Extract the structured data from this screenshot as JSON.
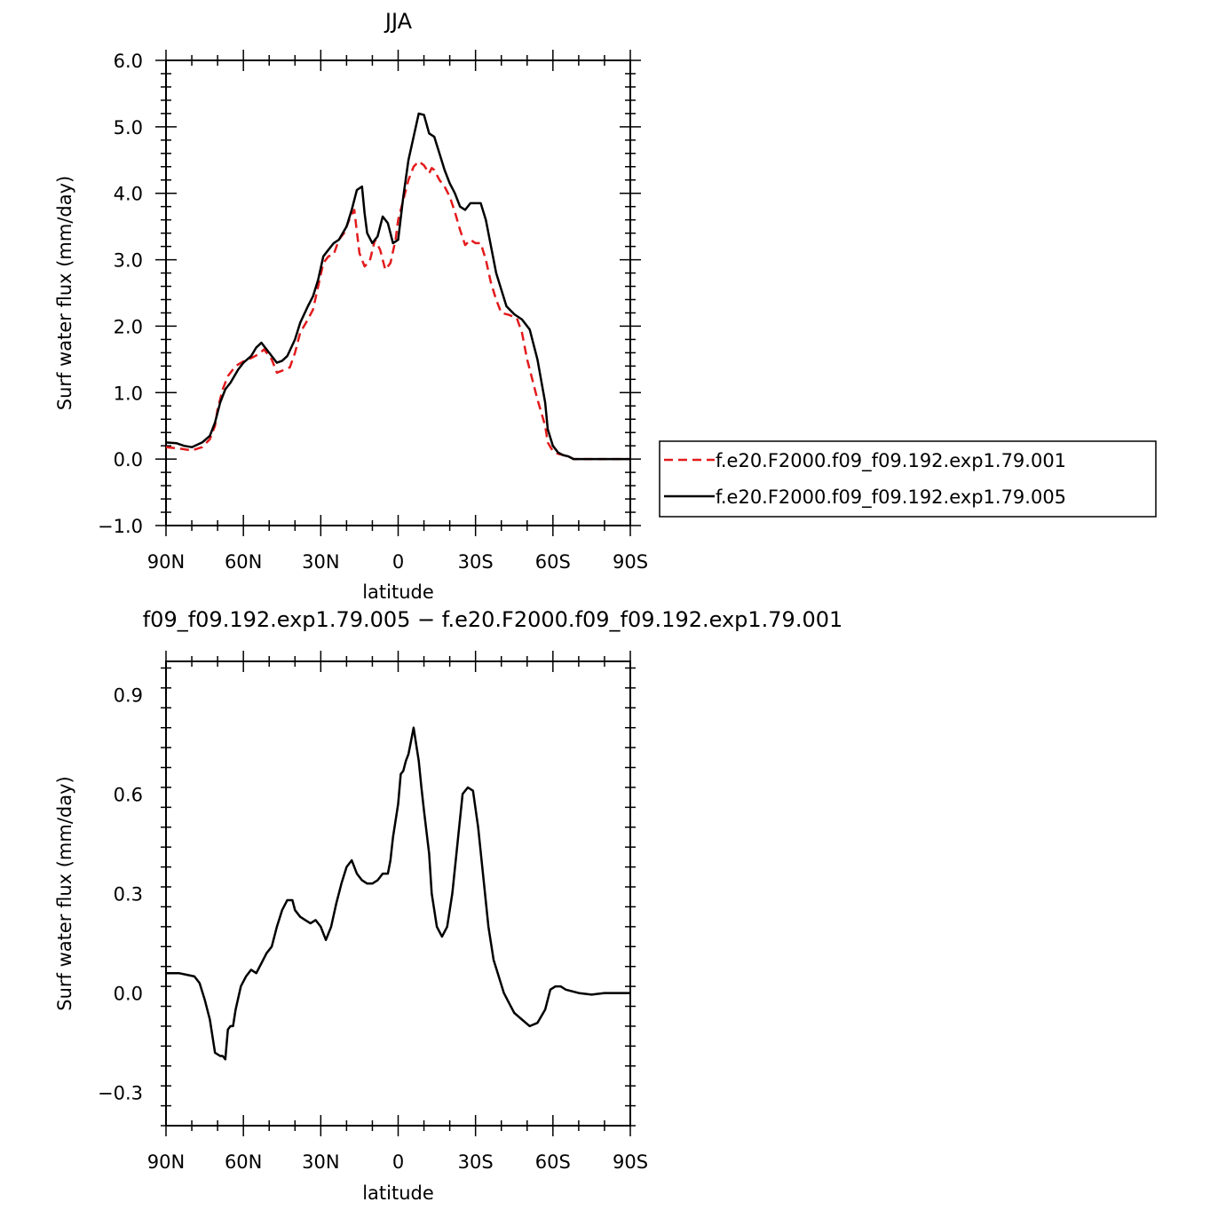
{
  "chart_data": [
    {
      "type": "line",
      "title": "JJA",
      "xlabel": "latitude",
      "ylabel": "Surf water flux (mm/day)",
      "xlim": [
        90,
        -90
      ],
      "ylim": [
        -1.0,
        6.0
      ],
      "x_ticks": [
        90,
        60,
        30,
        0,
        -30,
        -60,
        -90
      ],
      "x_tick_labels": [
        "90N",
        "60N",
        "30N",
        "0",
        "30S",
        "60S",
        "90S"
      ],
      "y_ticks": [
        -1.0,
        0.0,
        1.0,
        2.0,
        3.0,
        4.0,
        5.0,
        6.0
      ],
      "y_tick_labels": [
        "−1.0",
        "0.0",
        "1.0",
        "2.0",
        "3.0",
        "4.0",
        "5.0",
        "6.0"
      ],
      "legend_position": "right",
      "series": [
        {
          "name": "f.e20.F2000.f09_f09.192.exp1.79.001",
          "color": "#e31a1c",
          "style": "dashed",
          "x": [
            90,
            85,
            80,
            76,
            73,
            71,
            70,
            68,
            66,
            63,
            60,
            57,
            54,
            52,
            49,
            47,
            45,
            42,
            40,
            38,
            35,
            33,
            31,
            29,
            27,
            25,
            23,
            21,
            19,
            17,
            15,
            13,
            11,
            9,
            7,
            5,
            3,
            1,
            0,
            -2,
            -4,
            -6,
            -8,
            -10,
            -12,
            -13,
            -14,
            -16,
            -18,
            -20,
            -22,
            -24,
            -26,
            -28,
            -30,
            -32,
            -34,
            -36,
            -38,
            -40,
            -43,
            -46,
            -48,
            -50,
            -54,
            -57,
            -58,
            -60,
            -62,
            -64,
            -66,
            -68,
            -70,
            -72,
            -75,
            -78,
            -80,
            -83,
            -86,
            -90
          ],
          "y": [
            0.18,
            0.16,
            0.13,
            0.18,
            0.3,
            0.5,
            0.75,
            1.05,
            1.25,
            1.4,
            1.47,
            1.52,
            1.58,
            1.65,
            1.5,
            1.3,
            1.33,
            1.38,
            1.6,
            1.9,
            2.1,
            2.25,
            2.6,
            2.95,
            3.05,
            3.08,
            3.3,
            3.4,
            3.6,
            3.75,
            3.1,
            2.9,
            2.98,
            3.3,
            3.15,
            2.85,
            2.95,
            3.3,
            3.6,
            3.9,
            4.2,
            4.4,
            4.48,
            4.42,
            4.3,
            4.38,
            4.35,
            4.2,
            4.1,
            3.95,
            3.72,
            3.45,
            3.22,
            3.3,
            3.25,
            3.25,
            3.0,
            2.65,
            2.4,
            2.2,
            2.17,
            2.12,
            1.9,
            1.5,
            0.9,
            0.5,
            0.25,
            0.12,
            0.08,
            0.06,
            0.04,
            0.0,
            0.0,
            0.0,
            0.0,
            0.0,
            0.0,
            0.0,
            0.0,
            0.0
          ]
        },
        {
          "name": "f.e20.F2000.f09_f09.192.exp1.79.005",
          "color": "#000000",
          "style": "solid",
          "x": [
            90,
            86,
            83,
            80,
            76,
            73,
            71,
            69,
            67,
            65,
            62,
            60,
            57,
            55,
            53,
            51,
            49,
            47,
            45,
            43,
            40,
            38,
            35,
            33,
            31,
            29,
            27,
            25,
            23,
            20,
            18,
            16,
            14,
            13,
            12,
            10,
            8,
            6,
            4,
            2,
            0,
            -2,
            -4,
            -6,
            -8,
            -10,
            -12,
            -14,
            -16,
            -18,
            -20,
            -22,
            -24,
            -26,
            -28,
            -30,
            -32,
            -34,
            -36,
            -38,
            -40,
            -42,
            -45,
            -48,
            -51,
            -54,
            -57,
            -58,
            -60,
            -62,
            -64,
            -66,
            -68,
            -70,
            -72,
            -75,
            -78,
            -80,
            -83,
            -86,
            -90
          ],
          "y": [
            0.25,
            0.24,
            0.2,
            0.18,
            0.25,
            0.35,
            0.55,
            0.85,
            1.05,
            1.15,
            1.35,
            1.45,
            1.55,
            1.68,
            1.75,
            1.65,
            1.55,
            1.45,
            1.48,
            1.55,
            1.8,
            2.05,
            2.3,
            2.45,
            2.7,
            3.05,
            3.15,
            3.25,
            3.3,
            3.5,
            3.75,
            4.05,
            4.1,
            3.7,
            3.4,
            3.25,
            3.35,
            3.65,
            3.55,
            3.25,
            3.3,
            3.95,
            4.5,
            4.85,
            5.2,
            5.18,
            4.9,
            4.85,
            4.6,
            4.35,
            4.15,
            4.0,
            3.8,
            3.75,
            3.85,
            3.85,
            3.85,
            3.6,
            3.2,
            2.8,
            2.55,
            2.3,
            2.18,
            2.1,
            1.95,
            1.5,
            0.85,
            0.45,
            0.2,
            0.1,
            0.06,
            0.04,
            0.0,
            0.0,
            0.0,
            0.0,
            0.0,
            0.0,
            0.0,
            0.0,
            0.0
          ]
        }
      ]
    },
    {
      "type": "line",
      "title": "f09_f09.192.exp1.79.005 − f.e20.F2000.f09_f09.192.exp1.79.001",
      "xlabel": "latitude",
      "ylabel": "Surf water flux (mm/day)",
      "xlim": [
        90,
        -90
      ],
      "ylim": [
        -0.4,
        1.0
      ],
      "x_ticks": [
        90,
        60,
        30,
        0,
        -30,
        -60,
        -90
      ],
      "x_tick_labels": [
        "90N",
        "60N",
        "30N",
        "0",
        "30S",
        "60S",
        "90S"
      ],
      "y_ticks": [
        -0.3,
        0.0,
        0.3,
        0.6,
        0.9
      ],
      "y_tick_labels": [
        "−0.3",
        "0.0",
        "0.3",
        "0.6",
        "0.9"
      ],
      "series": [
        {
          "color": "#000000",
          "style": "solid",
          "x": [
            90,
            88,
            85,
            82,
            79,
            77,
            75,
            73,
            71,
            69,
            68,
            67,
            66,
            65,
            64,
            63,
            61,
            59,
            57,
            55,
            53,
            51,
            49,
            47,
            45,
            43,
            41,
            40,
            38,
            36,
            34,
            32,
            30,
            28,
            26,
            24,
            22,
            20,
            18,
            16,
            14,
            12,
            10,
            8,
            6,
            4,
            3,
            2,
            0,
            -1,
            -2,
            -3,
            -4,
            -5,
            -6,
            -7,
            -8,
            -9,
            -10,
            -12,
            -13,
            -15,
            -17,
            -19,
            -21,
            -23,
            -25,
            -27,
            -29,
            -31,
            -33,
            -35,
            -37,
            -39,
            -41,
            -43,
            -45,
            -48,
            -51,
            -54,
            -57,
            -59,
            -61,
            -63,
            -65,
            -70,
            -75,
            -80,
            -85,
            -90
          ],
          "y": [
            0.06,
            0.06,
            0.06,
            0.055,
            0.05,
            0.03,
            -0.02,
            -0.08,
            -0.18,
            -0.19,
            -0.19,
            -0.2,
            -0.11,
            -0.1,
            -0.1,
            -0.05,
            0.02,
            0.05,
            0.07,
            0.06,
            0.09,
            0.12,
            0.14,
            0.2,
            0.25,
            0.28,
            0.28,
            0.25,
            0.23,
            0.22,
            0.21,
            0.22,
            0.2,
            0.16,
            0.2,
            0.27,
            0.33,
            0.38,
            0.4,
            0.36,
            0.34,
            0.33,
            0.33,
            0.34,
            0.36,
            0.36,
            0.4,
            0.47,
            0.57,
            0.66,
            0.67,
            0.7,
            0.72,
            0.76,
            0.8,
            0.75,
            0.7,
            0.62,
            0.55,
            0.42,
            0.3,
            0.2,
            0.17,
            0.2,
            0.3,
            0.45,
            0.6,
            0.62,
            0.61,
            0.5,
            0.35,
            0.2,
            0.1,
            0.05,
            0.0,
            -0.03,
            -0.06,
            -0.08,
            -0.1,
            -0.09,
            -0.05,
            0.01,
            0.02,
            0.02,
            0.01,
            0.0,
            -0.005,
            0.0,
            0.0,
            0.0
          ]
        }
      ]
    }
  ]
}
